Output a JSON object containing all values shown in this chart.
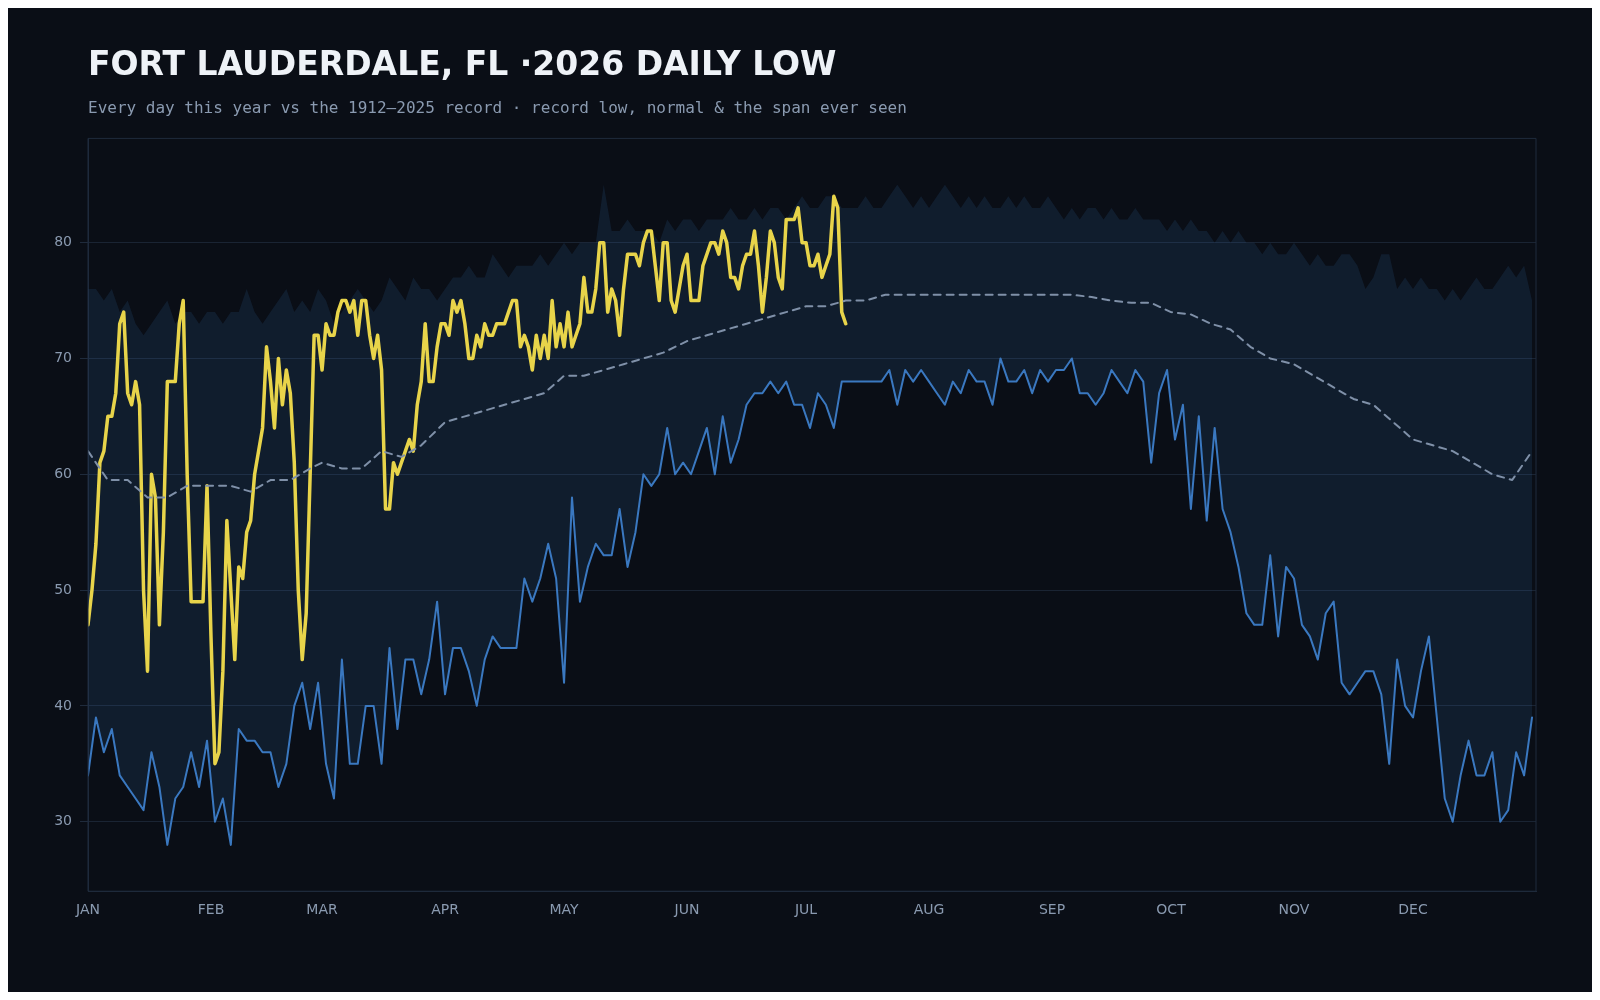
{
  "chart_data": {
    "type": "line",
    "title": "FORT LAUDERDALE, FL ·2026 DAILY LOW",
    "subtitle": "Every day this year vs the 1912–2025 record · record low, normal & the span ever seen",
    "xlim": [
      "2026-01-01",
      "2027-01-01"
    ],
    "xticks": [
      {
        "value": "2026-01-01",
        "label": "JAN"
      },
      {
        "value": "2026-02-01",
        "label": "FEB"
      },
      {
        "value": "2026-03-01",
        "label": "MAR"
      },
      {
        "value": "2026-04-01",
        "label": "APR"
      },
      {
        "value": "2026-05-01",
        "label": "MAY"
      },
      {
        "value": "2026-06-01",
        "label": "JUN"
      },
      {
        "value": "2026-07-01",
        "label": "JUL"
      },
      {
        "value": "2026-08-01",
        "label": "AUG"
      },
      {
        "value": "2026-09-01",
        "label": "SEP"
      },
      {
        "value": "2026-10-01",
        "label": "OCT"
      },
      {
        "value": "2026-11-01",
        "label": "NOV"
      },
      {
        "value": "2026-12-01",
        "label": "DEC"
      }
    ],
    "ylim": [
      24,
      89
    ],
    "yticks": [
      30,
      40,
      50,
      60,
      70,
      80
    ],
    "grid": "y",
    "series": [
      {
        "color": "#3a78c0",
        "x": [
          "2026-01-01",
          "2026-01-03",
          "2026-01-05",
          "2026-01-07",
          "2026-01-09",
          "2026-01-11",
          "2026-01-13",
          "2026-01-15",
          "2026-01-17",
          "2026-01-19",
          "2026-01-21",
          "2026-01-23",
          "2026-01-25",
          "2026-01-27",
          "2026-01-29",
          "2026-01-31",
          "2026-02-02",
          "2026-02-04",
          "2026-02-06",
          "2026-02-08",
          "2026-02-10",
          "2026-02-12",
          "2026-02-14",
          "2026-02-16",
          "2026-02-18",
          "2026-02-20",
          "2026-02-22",
          "2026-02-24",
          "2026-02-26",
          "2026-02-28",
          "2026-03-02",
          "2026-03-04",
          "2026-03-06",
          "2026-03-08",
          "2026-03-10",
          "2026-03-12",
          "2026-03-14",
          "2026-03-16",
          "2026-03-18",
          "2026-03-20",
          "2026-03-22",
          "2026-03-24",
          "2026-03-26",
          "2026-03-28",
          "2026-03-30",
          "2026-04-01",
          "2026-04-03",
          "2026-04-05",
          "2026-04-07",
          "2026-04-09",
          "2026-04-11",
          "2026-04-13",
          "2026-04-15",
          "2026-04-17",
          "2026-04-19",
          "2026-04-21",
          "2026-04-23",
          "2026-04-25",
          "2026-04-27",
          "2026-04-29",
          "2026-05-01",
          "2026-05-03",
          "2026-05-05",
          "2026-05-07",
          "2026-05-09",
          "2026-05-11",
          "2026-05-13",
          "2026-05-15",
          "2026-05-17",
          "2026-05-19",
          "2026-05-21",
          "2026-05-23",
          "2026-05-25",
          "2026-05-27",
          "2026-05-29",
          "2026-05-31",
          "2026-06-02",
          "2026-06-04",
          "2026-06-06",
          "2026-06-08",
          "2026-06-10",
          "2026-06-12",
          "2026-06-14",
          "2026-06-16",
          "2026-06-18",
          "2026-06-20",
          "2026-06-22",
          "2026-06-24",
          "2026-06-26",
          "2026-06-28",
          "2026-06-30",
          "2026-07-02",
          "2026-07-04",
          "2026-07-06",
          "2026-07-08",
          "2026-07-10",
          "2026-07-12",
          "2026-07-14",
          "2026-07-16",
          "2026-07-18",
          "2026-07-20",
          "2026-07-22",
          "2026-07-24",
          "2026-07-26",
          "2026-07-28",
          "2026-07-30",
          "2026-08-01",
          "2026-08-03",
          "2026-08-05",
          "2026-08-07",
          "2026-08-09",
          "2026-08-11",
          "2026-08-13",
          "2026-08-15",
          "2026-08-17",
          "2026-08-19",
          "2026-08-21",
          "2026-08-23",
          "2026-08-25",
          "2026-08-27",
          "2026-08-29",
          "2026-08-31",
          "2026-09-02",
          "2026-09-04",
          "2026-09-06",
          "2026-09-08",
          "2026-09-10",
          "2026-09-12",
          "2026-09-14",
          "2026-09-16",
          "2026-09-18",
          "2026-09-20",
          "2026-09-22",
          "2026-09-24",
          "2026-09-26",
          "2026-09-28",
          "2026-09-30",
          "2026-10-02",
          "2026-10-04",
          "2026-10-06",
          "2026-10-08",
          "2026-10-10",
          "2026-10-12",
          "2026-10-14",
          "2026-10-16",
          "2026-10-18",
          "2026-10-20",
          "2026-10-22",
          "2026-10-24",
          "2026-10-26",
          "2026-10-28",
          "2026-10-30",
          "2026-11-01",
          "2026-11-03",
          "2026-11-05",
          "2026-11-07",
          "2026-11-09",
          "2026-11-11",
          "2026-11-13",
          "2026-11-15",
          "2026-11-17",
          "2026-11-19",
          "2026-11-21",
          "2026-11-23",
          "2026-11-25",
          "2026-11-27",
          "2026-11-29",
          "2026-12-01",
          "2026-12-03",
          "2026-12-05",
          "2026-12-07",
          "2026-12-09",
          "2026-12-11",
          "2026-12-13",
          "2026-12-15",
          "2026-12-17",
          "2026-12-19",
          "2026-12-21",
          "2026-12-23",
          "2026-12-25",
          "2026-12-27",
          "2026-12-29",
          "2026-12-31"
        ],
        "values": [
          34,
          39,
          36,
          38,
          34,
          33,
          32,
          31,
          36,
          33,
          28,
          32,
          33,
          36,
          33,
          37,
          30,
          32,
          28,
          38,
          37,
          37,
          36,
          36,
          33,
          35,
          40,
          42,
          38,
          42,
          35,
          32,
          44,
          35,
          35,
          40,
          40,
          35,
          45,
          38,
          44,
          44,
          41,
          44,
          49,
          41,
          45,
          45,
          43,
          40,
          44,
          46,
          45,
          45,
          45,
          51,
          49,
          51,
          54,
          51,
          42,
          58,
          49,
          52,
          54,
          53,
          53,
          57,
          52,
          55,
          60,
          59,
          60,
          64,
          60,
          61,
          60,
          62,
          64,
          60,
          65,
          61,
          63,
          66,
          67,
          67,
          68,
          67,
          68,
          66,
          66,
          64,
          67,
          66,
          64,
          68,
          68,
          68,
          68,
          68,
          68,
          69,
          66,
          69,
          68,
          69,
          68,
          67,
          66,
          68,
          67,
          69,
          68,
          68,
          66,
          70,
          68,
          68,
          69,
          67,
          69,
          68,
          69,
          69,
          70,
          67,
          67,
          66,
          67,
          69,
          68,
          67,
          69,
          68,
          61,
          67,
          69,
          63,
          66,
          57,
          65,
          56,
          64,
          57,
          55,
          52,
          48,
          47,
          47,
          53,
          46,
          52,
          51,
          47,
          46,
          44,
          48,
          49,
          42,
          41,
          42,
          43,
          43,
          41,
          35,
          44,
          40,
          39,
          43,
          46,
          39,
          32,
          30,
          34,
          37,
          34,
          34,
          36,
          30,
          31,
          36,
          34,
          39
        ],
        "lower": [
          34,
          39,
          36,
          38,
          34,
          33,
          32,
          31,
          36,
          33,
          28,
          32,
          33,
          36,
          33,
          37,
          30,
          32,
          28,
          38,
          37,
          37,
          36,
          36,
          33,
          35,
          40,
          42,
          38,
          42,
          35,
          32,
          44,
          35,
          35,
          40,
          40,
          35,
          45,
          38,
          44,
          44,
          41,
          44,
          49,
          41,
          45,
          45,
          43,
          40,
          44,
          46,
          45,
          45,
          45,
          51,
          49,
          51,
          54,
          51,
          42,
          58,
          49,
          52,
          54,
          53,
          53,
          57,
          52,
          55,
          60,
          59,
          60,
          64,
          60,
          61,
          60,
          62,
          64,
          60,
          65,
          61,
          63,
          66,
          67,
          67,
          68,
          67,
          68,
          66,
          66,
          64,
          67,
          66,
          64,
          68,
          68,
          68,
          68,
          68,
          68,
          69,
          66,
          69,
          68,
          69,
          68,
          67,
          66,
          68,
          67,
          69,
          68,
          68,
          66,
          70,
          68,
          68,
          69,
          67,
          69,
          68,
          69,
          69,
          70,
          67,
          67,
          66,
          67,
          69,
          68,
          67,
          69,
          68,
          61,
          67,
          69,
          63,
          66,
          57,
          65,
          56,
          64,
          57,
          55,
          52,
          48,
          47,
          47,
          53,
          46,
          52,
          51,
          47,
          46,
          44,
          48,
          49,
          42,
          41,
          42,
          43,
          43,
          41,
          35,
          44,
          40,
          39,
          43,
          46,
          39,
          32,
          30,
          34,
          37,
          34,
          34,
          36,
          30,
          31,
          36,
          34,
          39
        ],
        "upper": [
          76,
          76,
          75,
          76,
          74,
          75,
          73,
          72,
          73,
          74,
          75,
          73,
          74,
          74,
          73,
          74,
          74,
          73,
          74,
          74,
          76,
          74,
          73,
          74,
          75,
          76,
          74,
          75,
          74,
          76,
          75,
          73,
          74,
          75,
          76,
          75,
          74,
          75,
          77,
          76,
          75,
          77,
          76,
          76,
          75,
          76,
          77,
          77,
          78,
          77,
          77,
          79,
          78,
          77,
          78,
          78,
          78,
          79,
          78,
          79,
          80,
          79,
          80,
          80,
          80,
          85,
          81,
          81,
          82,
          81,
          81,
          81,
          80,
          82,
          81,
          82,
          82,
          81,
          82,
          82,
          82,
          83,
          82,
          82,
          83,
          82,
          83,
          83,
          82,
          83,
          84,
          83,
          83,
          84,
          84,
          83,
          83,
          83,
          84,
          83,
          83,
          84,
          85,
          84,
          83,
          84,
          83,
          84,
          85,
          84,
          83,
          84,
          83,
          84,
          83,
          83,
          84,
          83,
          84,
          83,
          83,
          84,
          83,
          82,
          83,
          82,
          83,
          83,
          82,
          83,
          82,
          82,
          83,
          82,
          82,
          82,
          81,
          82,
          81,
          82,
          81,
          81,
          80,
          81,
          80,
          81,
          80,
          80,
          79,
          80,
          79,
          79,
          80,
          79,
          78,
          79,
          78,
          78,
          79,
          79,
          78,
          76,
          77,
          79,
          79,
          76,
          77,
          76,
          77,
          76,
          76,
          75,
          76,
          75,
          76,
          77,
          76,
          76,
          77,
          78,
          77,
          78,
          75
        ]
      },
      {
        "color": "#7f90a8",
        "line_style": "dashed",
        "x": [
          "2026-01-01",
          "2026-01-06",
          "2026-01-11",
          "2026-01-16",
          "2026-01-21",
          "2026-01-26",
          "2026-02-01",
          "2026-02-06",
          "2026-02-11",
          "2026-02-16",
          "2026-02-21",
          "2026-02-26",
          "2026-03-01",
          "2026-03-06",
          "2026-03-11",
          "2026-03-16",
          "2026-03-21",
          "2026-03-26",
          "2026-04-01",
          "2026-04-06",
          "2026-04-11",
          "2026-04-16",
          "2026-04-21",
          "2026-04-26",
          "2026-05-01",
          "2026-05-06",
          "2026-05-11",
          "2026-05-16",
          "2026-05-21",
          "2026-05-26",
          "2026-06-01",
          "2026-06-06",
          "2026-06-11",
          "2026-06-16",
          "2026-06-21",
          "2026-06-26",
          "2026-07-01",
          "2026-07-06",
          "2026-07-11",
          "2026-07-16",
          "2026-07-21",
          "2026-07-26",
          "2026-08-01",
          "2026-08-06",
          "2026-08-11",
          "2026-08-16",
          "2026-08-21",
          "2026-08-26",
          "2026-09-01",
          "2026-09-06",
          "2026-09-11",
          "2026-09-16",
          "2026-09-21",
          "2026-09-26",
          "2026-10-01",
          "2026-10-06",
          "2026-10-11",
          "2026-10-16",
          "2026-10-21",
          "2026-10-26",
          "2026-11-01",
          "2026-11-06",
          "2026-11-11",
          "2026-11-16",
          "2026-11-21",
          "2026-11-26",
          "2026-12-01",
          "2026-12-06",
          "2026-12-11",
          "2026-12-16",
          "2026-12-21",
          "2026-12-26",
          "2026-12-31"
        ],
        "values": [
          62,
          59.5,
          59.5,
          58,
          58,
          59,
          59,
          59,
          58.5,
          59.5,
          59.5,
          60.5,
          61,
          60.5,
          60.5,
          62,
          61.5,
          62.5,
          64.5,
          65,
          65.5,
          66,
          66.5,
          67,
          68.5,
          68.5,
          69,
          69.5,
          70,
          70.5,
          71.5,
          72,
          72.5,
          73,
          73.5,
          74,
          74.5,
          74.5,
          75,
          75,
          75.5,
          75.5,
          75.5,
          75.5,
          75.5,
          75.5,
          75.5,
          75.5,
          75.5,
          75.5,
          75.3,
          75,
          74.8,
          74.8,
          74,
          73.8,
          73,
          72.5,
          71,
          70,
          69.5,
          68.5,
          67.5,
          66.5,
          66,
          64.5,
          63,
          62.5,
          62,
          61,
          60,
          59.5,
          62
        ]
      },
      {
        "color": "#e8d44a",
        "x": [
          "2026-01-01",
          "2026-01-02",
          "2026-01-03",
          "2026-01-04",
          "2026-01-05",
          "2026-01-06",
          "2026-01-07",
          "2026-01-08",
          "2026-01-09",
          "2026-01-10",
          "2026-01-11",
          "2026-01-12",
          "2026-01-13",
          "2026-01-14",
          "2026-01-15",
          "2026-01-16",
          "2026-01-17",
          "2026-01-18",
          "2026-01-19",
          "2026-01-20",
          "2026-01-21",
          "2026-01-22",
          "2026-01-23",
          "2026-01-24",
          "2026-01-25",
          "2026-01-26",
          "2026-01-27",
          "2026-01-28",
          "2026-01-29",
          "2026-01-30",
          "2026-01-31",
          "2026-02-01",
          "2026-02-02",
          "2026-02-03",
          "2026-02-04",
          "2026-02-05",
          "2026-02-06",
          "2026-02-07",
          "2026-02-08",
          "2026-02-09",
          "2026-02-10",
          "2026-02-11",
          "2026-02-12",
          "2026-02-13",
          "2026-02-14",
          "2026-02-15",
          "2026-02-16",
          "2026-02-17",
          "2026-02-18",
          "2026-02-19",
          "2026-02-20",
          "2026-02-21",
          "2026-02-22",
          "2026-02-23",
          "2026-02-24",
          "2026-02-25",
          "2026-02-26",
          "2026-02-27",
          "2026-02-28",
          "2026-03-01",
          "2026-03-02",
          "2026-03-03",
          "2026-03-04",
          "2026-03-05",
          "2026-03-06",
          "2026-03-07",
          "2026-03-08",
          "2026-03-09",
          "2026-03-10",
          "2026-03-11",
          "2026-03-12",
          "2026-03-13",
          "2026-03-14",
          "2026-03-15",
          "2026-03-16",
          "2026-03-17",
          "2026-03-18",
          "2026-03-19",
          "2026-03-20",
          "2026-03-21",
          "2026-03-22",
          "2026-03-23",
          "2026-03-24",
          "2026-03-25",
          "2026-03-26",
          "2026-03-27",
          "2026-03-28",
          "2026-03-29",
          "2026-03-30",
          "2026-03-31",
          "2026-04-01",
          "2026-04-02",
          "2026-04-03",
          "2026-04-04",
          "2026-04-05",
          "2026-04-06",
          "2026-04-07",
          "2026-04-08",
          "2026-04-09",
          "2026-04-10",
          "2026-04-11",
          "2026-04-12",
          "2026-04-13",
          "2026-04-14",
          "2026-04-15",
          "2026-04-16",
          "2026-04-17",
          "2026-04-18",
          "2026-04-19",
          "2026-04-20",
          "2026-04-21",
          "2026-04-22",
          "2026-04-23",
          "2026-04-24",
          "2026-04-25",
          "2026-04-26",
          "2026-04-27",
          "2026-04-28",
          "2026-04-29",
          "2026-04-30",
          "2026-05-01",
          "2026-05-02",
          "2026-05-03",
          "2026-05-04",
          "2026-05-05",
          "2026-05-06",
          "2026-05-07",
          "2026-05-08",
          "2026-05-09",
          "2026-05-10",
          "2026-05-11",
          "2026-05-12",
          "2026-05-13",
          "2026-05-14",
          "2026-05-15",
          "2026-05-16",
          "2026-05-17",
          "2026-05-18",
          "2026-05-19",
          "2026-05-20",
          "2026-05-21",
          "2026-05-22",
          "2026-05-23",
          "2026-05-24",
          "2026-05-25",
          "2026-05-26",
          "2026-05-27",
          "2026-05-28",
          "2026-05-29",
          "2026-05-30",
          "2026-05-31",
          "2026-06-01",
          "2026-06-02",
          "2026-06-03",
          "2026-06-04",
          "2026-06-05",
          "2026-06-06",
          "2026-06-07",
          "2026-06-08",
          "2026-06-09",
          "2026-06-10",
          "2026-06-11",
          "2026-06-12",
          "2026-06-13",
          "2026-06-14",
          "2026-06-15",
          "2026-06-16",
          "2026-06-17",
          "2026-06-18",
          "2026-06-19",
          "2026-06-20",
          "2026-06-21",
          "2026-06-22",
          "2026-06-23",
          "2026-06-24",
          "2026-06-25",
          "2026-06-26",
          "2026-06-27",
          "2026-06-28",
          "2026-06-29",
          "2026-06-30",
          "2026-07-01",
          "2026-07-02",
          "2026-07-03",
          "2026-07-04",
          "2026-07-05",
          "2026-07-06",
          "2026-07-07",
          "2026-07-08",
          "2026-07-09",
          "2026-07-10",
          "2026-07-11"
        ],
        "values": [
          47,
          50,
          54,
          61,
          62,
          65,
          65,
          67,
          73,
          74,
          67,
          66,
          68,
          66,
          50,
          43,
          60,
          58,
          47,
          55,
          68,
          68,
          68,
          73,
          75,
          60,
          49,
          49,
          49,
          49,
          59,
          46,
          35,
          36,
          43,
          56,
          50,
          44,
          52,
          51,
          55,
          56,
          60,
          62,
          64,
          71,
          68,
          64,
          70,
          66,
          69,
          67,
          61,
          50,
          44,
          48,
          60,
          72,
          72,
          69,
          73,
          72,
          72,
          74,
          75,
          75,
          74,
          75,
          72,
          75,
          75,
          72,
          70,
          72,
          69,
          57,
          57,
          61,
          60,
          61,
          62,
          63,
          62,
          66,
          68,
          73,
          68,
          68,
          71,
          73,
          73,
          72,
          75,
          74,
          75,
          73,
          70,
          70,
          72,
          71,
          73,
          72,
          72,
          73,
          73,
          73,
          74,
          75,
          75,
          71,
          72,
          71,
          69,
          72,
          70,
          72,
          70,
          75,
          71,
          73,
          71,
          74,
          71,
          72,
          73,
          77,
          74,
          74,
          76,
          80,
          80,
          74,
          76,
          75,
          72,
          76,
          79,
          79,
          79,
          78,
          80,
          81,
          81,
          78,
          75,
          80,
          80,
          75,
          74,
          76,
          78,
          79,
          75,
          75,
          75,
          78,
          79,
          80,
          80,
          79,
          81,
          80,
          77,
          77,
          76,
          78,
          79,
          79,
          81,
          78,
          74,
          77,
          81,
          80,
          77,
          76,
          82,
          82,
          82,
          83,
          80,
          80,
          78,
          78,
          79,
          77,
          78,
          79,
          84,
          83,
          74,
          73
        ]
      }
    ]
  }
}
